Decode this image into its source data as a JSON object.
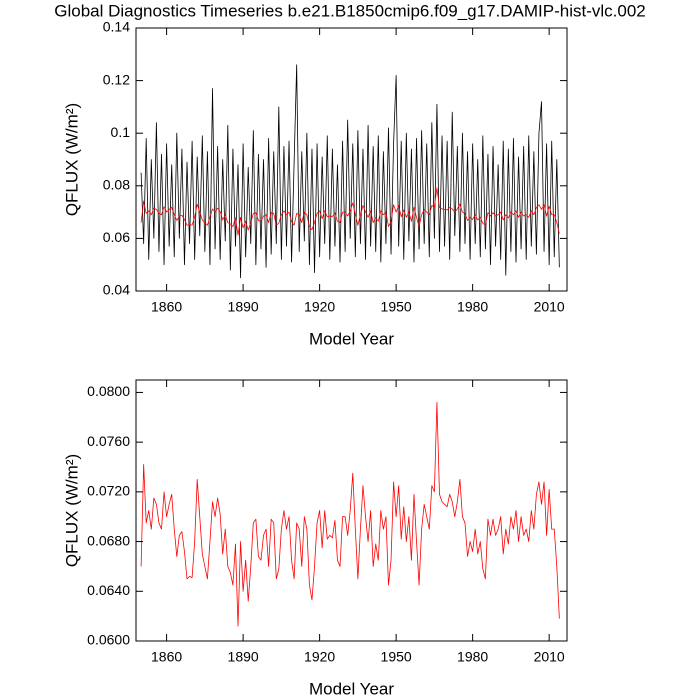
{
  "chart_data": [
    {
      "type": "line",
      "title": "Global Diagnostics Timeseries b.e21.B1850cmip6.f09_g17.DAMIP-hist-vlc.002",
      "xlabel": "Model Year",
      "ylabel": "QFLUX (W/m²)",
      "xlim": [
        1848,
        2017
      ],
      "xticks": [
        1860,
        1890,
        1920,
        1950,
        1980,
        2010
      ],
      "ylim": [
        0.04,
        0.14
      ],
      "yticks": [
        0.04,
        0.06,
        0.08,
        0.1,
        0.12,
        0.14
      ],
      "x": [
        1850,
        1851,
        1852,
        1853,
        1854,
        1855,
        1856,
        1857,
        1858,
        1859,
        1860,
        1861,
        1862,
        1863,
        1864,
        1865,
        1866,
        1867,
        1868,
        1869,
        1870,
        1871,
        1872,
        1873,
        1874,
        1875,
        1876,
        1877,
        1878,
        1879,
        1880,
        1881,
        1882,
        1883,
        1884,
        1885,
        1886,
        1887,
        1888,
        1889,
        1890,
        1891,
        1892,
        1893,
        1894,
        1895,
        1896,
        1897,
        1898,
        1899,
        1900,
        1901,
        1902,
        1903,
        1904,
        1905,
        1906,
        1907,
        1908,
        1909,
        1910,
        1911,
        1912,
        1913,
        1914,
        1915,
        1916,
        1917,
        1918,
        1919,
        1920,
        1921,
        1922,
        1923,
        1924,
        1925,
        1926,
        1927,
        1928,
        1929,
        1930,
        1931,
        1932,
        1933,
        1934,
        1935,
        1936,
        1937,
        1938,
        1939,
        1940,
        1941,
        1942,
        1943,
        1944,
        1945,
        1946,
        1947,
        1948,
        1949,
        1950,
        1951,
        1952,
        1953,
        1954,
        1955,
        1956,
        1957,
        1958,
        1959,
        1960,
        1961,
        1962,
        1963,
        1964,
        1965,
        1966,
        1967,
        1968,
        1969,
        1970,
        1971,
        1972,
        1973,
        1974,
        1975,
        1976,
        1977,
        1978,
        1979,
        1980,
        1981,
        1982,
        1983,
        1984,
        1985,
        1986,
        1987,
        1988,
        1989,
        1990,
        1991,
        1992,
        1993,
        1994,
        1995,
        1996,
        1997,
        1998,
        1999,
        2000,
        2001,
        2002,
        2003,
        2004,
        2005,
        2006,
        2007,
        2008,
        2009,
        2010,
        2011,
        2012,
        2013,
        2014
      ],
      "series": [
        {
          "color": "#000000",
          "values": [
            0.085,
            0.058,
            0.098,
            0.052,
            0.09,
            0.06,
            0.104,
            0.055,
            0.092,
            0.05,
            0.096,
            0.057,
            0.088,
            0.053,
            0.1,
            0.06,
            0.094,
            0.05,
            0.089,
            0.058,
            0.097,
            0.052,
            0.091,
            0.061,
            0.099,
            0.055,
            0.093,
            0.05,
            0.117,
            0.056,
            0.095,
            0.052,
            0.09,
            0.059,
            0.103,
            0.048,
            0.094,
            0.057,
            0.088,
            0.045,
            0.096,
            0.053,
            0.087,
            0.058,
            0.101,
            0.05,
            0.092,
            0.056,
            0.09,
            0.049,
            0.098,
            0.054,
            0.093,
            0.058,
            0.11,
            0.052,
            0.095,
            0.057,
            0.097,
            0.051,
            0.089,
            0.126,
            0.055,
            0.093,
            0.059,
            0.1,
            0.05,
            0.094,
            0.047,
            0.096,
            0.053,
            0.091,
            0.058,
            0.099,
            0.052,
            0.094,
            0.057,
            0.088,
            0.051,
            0.097,
            0.055,
            0.105,
            0.06,
            0.096,
            0.053,
            0.101,
            0.058,
            0.094,
            0.052,
            0.103,
            0.057,
            0.095,
            0.055,
            0.099,
            0.051,
            0.093,
            0.058,
            0.102,
            0.054,
            0.096,
            0.122,
            0.057,
            0.097,
            0.052,
            0.1,
            0.059,
            0.094,
            0.051,
            0.098,
            0.056,
            0.101,
            0.058,
            0.096,
            0.053,
            0.104,
            0.06,
            0.111,
            0.055,
            0.099,
            0.057,
            0.097,
            0.052,
            0.108,
            0.061,
            0.095,
            0.055,
            0.1,
            0.058,
            0.093,
            0.052,
            0.096,
            0.058,
            0.09,
            0.053,
            0.099,
            0.056,
            0.092,
            0.05,
            0.095,
            0.057,
            0.088,
            0.052,
            0.097,
            0.046,
            0.094,
            0.055,
            0.098,
            0.051,
            0.091,
            0.056,
            0.095,
            0.052,
            0.099,
            0.057,
            0.093,
            0.054,
            0.1,
            0.112,
            0.055,
            0.096,
            0.05,
            0.097,
            0.053,
            0.09,
            0.049
          ]
        },
        {
          "color": "#ff0000",
          "values": [
            0.066,
            0.0742,
            0.0695,
            0.0705,
            0.069,
            0.0715,
            0.071,
            0.0695,
            0.069,
            0.072,
            0.07,
            0.071,
            0.0718,
            0.069,
            0.0668,
            0.0685,
            0.0688,
            0.0672,
            0.065,
            0.0652,
            0.0651,
            0.068,
            0.073,
            0.07,
            0.067,
            0.066,
            0.065,
            0.068,
            0.0712,
            0.07,
            0.0715,
            0.0702,
            0.067,
            0.069,
            0.066,
            0.0655,
            0.0645,
            0.0678,
            0.0612,
            0.068,
            0.064,
            0.0665,
            0.0632,
            0.066,
            0.0695,
            0.0698,
            0.0668,
            0.0665,
            0.0685,
            0.069,
            0.066,
            0.0698,
            0.0695,
            0.065,
            0.0658,
            0.069,
            0.0705,
            0.069,
            0.07,
            0.0665,
            0.065,
            0.0695,
            0.069,
            0.066,
            0.07,
            0.069,
            0.0645,
            0.0633,
            0.066,
            0.0695,
            0.0705,
            0.0675,
            0.0705,
            0.0682,
            0.0685,
            0.0683,
            0.0697,
            0.0665,
            0.066,
            0.07,
            0.07,
            0.0685,
            0.0705,
            0.0735,
            0.069,
            0.065,
            0.069,
            0.0725,
            0.07,
            0.068,
            0.0705,
            0.066,
            0.0678,
            0.0665,
            0.0705,
            0.069,
            0.07,
            0.0645,
            0.0665,
            0.0728,
            0.07,
            0.0725,
            0.0682,
            0.0708,
            0.068,
            0.07,
            0.0665,
            0.0718,
            0.068,
            0.0645,
            0.069,
            0.071,
            0.07,
            0.069,
            0.0725,
            0.072,
            0.0792,
            0.0718,
            0.0712,
            0.071,
            0.0708,
            0.0718,
            0.0712,
            0.07,
            0.0712,
            0.073,
            0.07,
            0.0695,
            0.0668,
            0.068,
            0.0672,
            0.069,
            0.067,
            0.068,
            0.0658,
            0.065,
            0.0698,
            0.0685,
            0.0698,
            0.0685,
            0.069,
            0.07,
            0.067,
            0.069,
            0.0678,
            0.07,
            0.069,
            0.0705,
            0.068,
            0.07,
            0.0685,
            0.069,
            0.068,
            0.0705,
            0.069,
            0.0718,
            0.0728,
            0.071,
            0.0728,
            0.0685,
            0.0722,
            0.069,
            0.069,
            0.066,
            0.0618
          ]
        }
      ]
    },
    {
      "type": "line",
      "xlabel": "Model Year",
      "ylabel": "QFLUX (W/m²)",
      "xlim": [
        1848,
        2017
      ],
      "xticks": [
        1860,
        1890,
        1920,
        1950,
        1980,
        2010
      ],
      "ylim": [
        0.06,
        0.081
      ],
      "yticks": [
        {
          "value": 0.06,
          "label": "0.0600"
        },
        {
          "value": 0.064,
          "label": "0.0640"
        },
        {
          "value": 0.068,
          "label": "0.0680"
        },
        {
          "value": 0.072,
          "label": "0.0720"
        },
        {
          "value": 0.076,
          "label": "0.0760"
        },
        {
          "value": 0.08,
          "label": "0.0800"
        }
      ],
      "x": [
        1850,
        1851,
        1852,
        1853,
        1854,
        1855,
        1856,
        1857,
        1858,
        1859,
        1860,
        1861,
        1862,
        1863,
        1864,
        1865,
        1866,
        1867,
        1868,
        1869,
        1870,
        1871,
        1872,
        1873,
        1874,
        1875,
        1876,
        1877,
        1878,
        1879,
        1880,
        1881,
        1882,
        1883,
        1884,
        1885,
        1886,
        1887,
        1888,
        1889,
        1890,
        1891,
        1892,
        1893,
        1894,
        1895,
        1896,
        1897,
        1898,
        1899,
        1900,
        1901,
        1902,
        1903,
        1904,
        1905,
        1906,
        1907,
        1908,
        1909,
        1910,
        1911,
        1912,
        1913,
        1914,
        1915,
        1916,
        1917,
        1918,
        1919,
        1920,
        1921,
        1922,
        1923,
        1924,
        1925,
        1926,
        1927,
        1928,
        1929,
        1930,
        1931,
        1932,
        1933,
        1934,
        1935,
        1936,
        1937,
        1938,
        1939,
        1940,
        1941,
        1942,
        1943,
        1944,
        1945,
        1946,
        1947,
        1948,
        1949,
        1950,
        1951,
        1952,
        1953,
        1954,
        1955,
        1956,
        1957,
        1958,
        1959,
        1960,
        1961,
        1962,
        1963,
        1964,
        1965,
        1966,
        1967,
        1968,
        1969,
        1970,
        1971,
        1972,
        1973,
        1974,
        1975,
        1976,
        1977,
        1978,
        1979,
        1980,
        1981,
        1982,
        1983,
        1984,
        1985,
        1986,
        1987,
        1988,
        1989,
        1990,
        1991,
        1992,
        1993,
        1994,
        1995,
        1996,
        1997,
        1998,
        1999,
        2000,
        2001,
        2002,
        2003,
        2004,
        2005,
        2006,
        2007,
        2008,
        2009,
        2010,
        2011,
        2012,
        2013,
        2014
      ],
      "series": [
        {
          "color": "#ff0000",
          "values": [
            0.066,
            0.0742,
            0.0695,
            0.0705,
            0.069,
            0.0715,
            0.071,
            0.0695,
            0.069,
            0.072,
            0.07,
            0.071,
            0.0718,
            0.069,
            0.0668,
            0.0685,
            0.0688,
            0.0672,
            0.065,
            0.0652,
            0.0651,
            0.068,
            0.073,
            0.07,
            0.067,
            0.066,
            0.065,
            0.068,
            0.0712,
            0.07,
            0.0715,
            0.0702,
            0.067,
            0.069,
            0.066,
            0.0655,
            0.0645,
            0.0678,
            0.0612,
            0.068,
            0.064,
            0.0665,
            0.0632,
            0.066,
            0.0695,
            0.0698,
            0.0668,
            0.0665,
            0.0685,
            0.069,
            0.066,
            0.0698,
            0.0695,
            0.065,
            0.0658,
            0.069,
            0.0705,
            0.069,
            0.07,
            0.0665,
            0.065,
            0.0695,
            0.069,
            0.066,
            0.07,
            0.069,
            0.0645,
            0.0633,
            0.066,
            0.0695,
            0.0705,
            0.0675,
            0.0705,
            0.0682,
            0.0685,
            0.0683,
            0.0697,
            0.0665,
            0.066,
            0.07,
            0.07,
            0.0685,
            0.0705,
            0.0735,
            0.069,
            0.065,
            0.069,
            0.0725,
            0.07,
            0.068,
            0.0705,
            0.066,
            0.0678,
            0.0665,
            0.0705,
            0.069,
            0.07,
            0.0645,
            0.0665,
            0.0728,
            0.07,
            0.0725,
            0.0682,
            0.0708,
            0.068,
            0.07,
            0.0665,
            0.0718,
            0.068,
            0.0645,
            0.069,
            0.071,
            0.07,
            0.069,
            0.0725,
            0.072,
            0.0792,
            0.0718,
            0.0712,
            0.071,
            0.0708,
            0.0718,
            0.0712,
            0.07,
            0.0712,
            0.073,
            0.07,
            0.0695,
            0.0668,
            0.068,
            0.0672,
            0.069,
            0.067,
            0.068,
            0.0658,
            0.065,
            0.0698,
            0.0685,
            0.0698,
            0.0685,
            0.069,
            0.07,
            0.067,
            0.069,
            0.0678,
            0.07,
            0.069,
            0.0705,
            0.068,
            0.07,
            0.0685,
            0.069,
            0.068,
            0.0705,
            0.069,
            0.0718,
            0.0728,
            0.071,
            0.0728,
            0.0685,
            0.0722,
            0.069,
            0.069,
            0.066,
            0.0618
          ]
        }
      ]
    }
  ]
}
